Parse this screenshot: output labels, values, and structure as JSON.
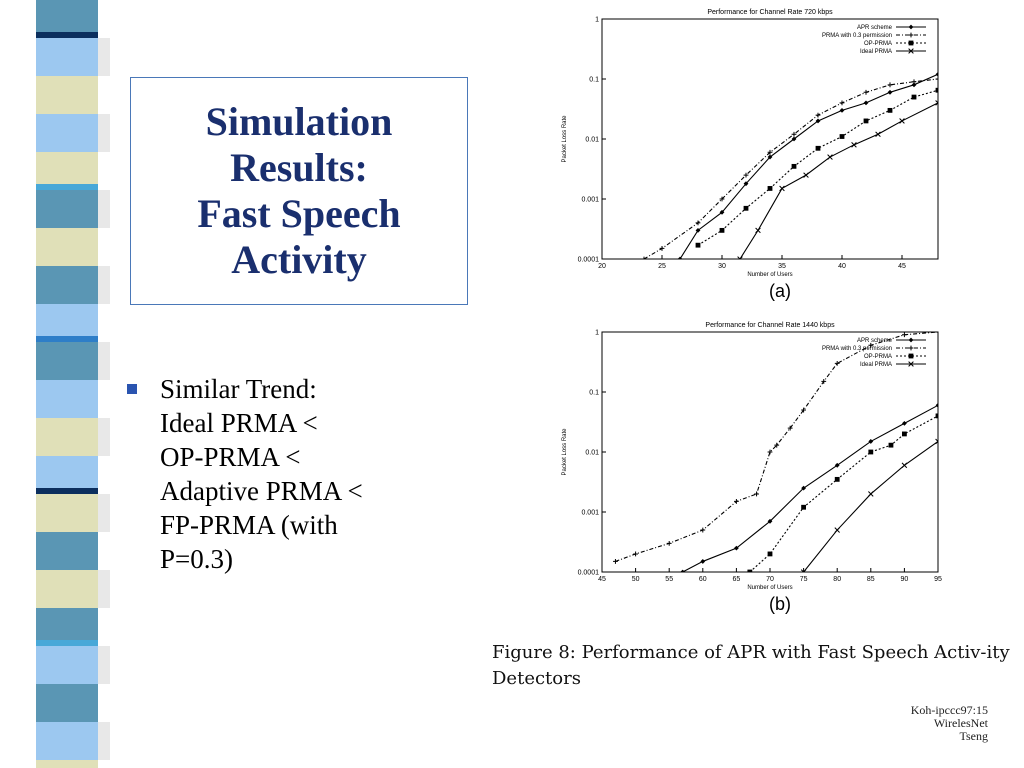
{
  "slide": {
    "title": "Simulation\nResults:\nFast Speech\nActivity",
    "bullet": "Similar Trend:\nIdeal PRMA <\nOP-PRMA <\nAdaptive PRMA <\nFP-PRMA (with\nP=0.3)",
    "caption": "Figure 8:  Performance of APR with Fast Speech Activ-ity Detectors",
    "credit": "Koh-ipccc97:15\nWirelesNet\nTseng",
    "colors": {
      "title": "#1a2f6e",
      "border": "#4a78b8",
      "bullet": "#2a54b0"
    },
    "stripe_colors": [
      "#5a96b4",
      "#3a6fd0",
      "#0c2f5e",
      "#e0e0b8",
      "#000000",
      "#48a8d8",
      "#9cc8f0",
      "#1a4a8a",
      "#2e7ec8"
    ]
  },
  "chart_data": [
    {
      "type": "line",
      "title": "Performance for Channel Rate 720 kbps",
      "xlabel": "Number of Users",
      "ylabel": "Packet Loss Rate",
      "panel_label": "(a)",
      "xlim": [
        20,
        48
      ],
      "ylim": [
        0.0001,
        1
      ],
      "yscale": "log",
      "xticks": [
        "20",
        "25",
        "30",
        "35",
        "40",
        "45"
      ],
      "yticks": [
        "0.0001",
        "0.001",
        "0.01",
        "0.1",
        "1"
      ],
      "legend_position": "top-right",
      "series": [
        {
          "name": "APR scheme",
          "marker": "diamond",
          "dash": "solid",
          "x": [
            26.5,
            28,
            30,
            32,
            34,
            36,
            38,
            40,
            42,
            44,
            46,
            48
          ],
          "y": [
            0.0001,
            0.0003,
            0.0006,
            0.0018,
            0.005,
            0.01,
            0.02,
            0.03,
            0.04,
            0.06,
            0.08,
            0.12
          ]
        },
        {
          "name": "PRMA with 0.3 permission",
          "marker": "plus",
          "dash": "dash-dot",
          "x": [
            23.5,
            25,
            28,
            30,
            32,
            34,
            36,
            38,
            40,
            42,
            44,
            46,
            48
          ],
          "y": [
            0.0001,
            0.00015,
            0.0004,
            0.001,
            0.0025,
            0.006,
            0.012,
            0.025,
            0.04,
            0.06,
            0.08,
            0.09,
            0.1
          ]
        },
        {
          "name": "OP-PRMA",
          "marker": "square",
          "dash": "dotted",
          "x": [
            28,
            30,
            32,
            34,
            36,
            38,
            40,
            42,
            44,
            46,
            48
          ],
          "y": [
            0.00017,
            0.0003,
            0.0007,
            0.0015,
            0.0035,
            0.007,
            0.011,
            0.02,
            0.03,
            0.05,
            0.065
          ]
        },
        {
          "name": "Ideal PRMA",
          "marker": "cross",
          "dash": "solid",
          "x": [
            31.5,
            33,
            35,
            37,
            39,
            41,
            43,
            45,
            48
          ],
          "y": [
            0.0001,
            0.0003,
            0.0015,
            0.0025,
            0.005,
            0.008,
            0.012,
            0.02,
            0.04
          ]
        }
      ]
    },
    {
      "type": "line",
      "title": "Performance for Channel Rate 1440 kbps",
      "xlabel": "Number of Users",
      "ylabel": "Packet Loss Rate",
      "panel_label": "(b)",
      "xlim": [
        45,
        95
      ],
      "ylim": [
        0.0001,
        1
      ],
      "yscale": "log",
      "xticks": [
        "45",
        "50",
        "55",
        "60",
        "65",
        "70",
        "75",
        "80",
        "85",
        "90",
        "95"
      ],
      "yticks": [
        "0.0001",
        "0.001",
        "0.01",
        "0.1",
        "1"
      ],
      "legend_position": "top-right",
      "series": [
        {
          "name": "APR scheme",
          "marker": "diamond",
          "dash": "solid",
          "x": [
            57,
            60,
            65,
            70,
            75,
            80,
            85,
            90,
            95
          ],
          "y": [
            0.0001,
            0.00015,
            0.00025,
            0.0007,
            0.0025,
            0.006,
            0.015,
            0.03,
            0.06
          ]
        },
        {
          "name": "PRMA with 0.3 permission",
          "marker": "plus",
          "dash": "dash-dot",
          "x": [
            47,
            50,
            55,
            60,
            65,
            68,
            70,
            71,
            73,
            75,
            78,
            80,
            85,
            90,
            95
          ],
          "y": [
            0.00015,
            0.0002,
            0.0003,
            0.0005,
            0.0015,
            0.002,
            0.01,
            0.013,
            0.025,
            0.05,
            0.15,
            0.3,
            0.6,
            0.9,
            1
          ]
        },
        {
          "name": "OP-PRMA",
          "marker": "square",
          "dash": "dotted",
          "x": [
            67,
            70,
            75,
            80,
            85,
            88,
            90,
            95
          ],
          "y": [
            0.0001,
            0.0002,
            0.0012,
            0.0035,
            0.01,
            0.013,
            0.02,
            0.04
          ]
        },
        {
          "name": "Ideal PRMA",
          "marker": "cross",
          "dash": "solid",
          "x": [
            75,
            80,
            85,
            90,
            95
          ],
          "y": [
            0.0001,
            0.0005,
            0.002,
            0.006,
            0.015
          ]
        }
      ]
    }
  ]
}
